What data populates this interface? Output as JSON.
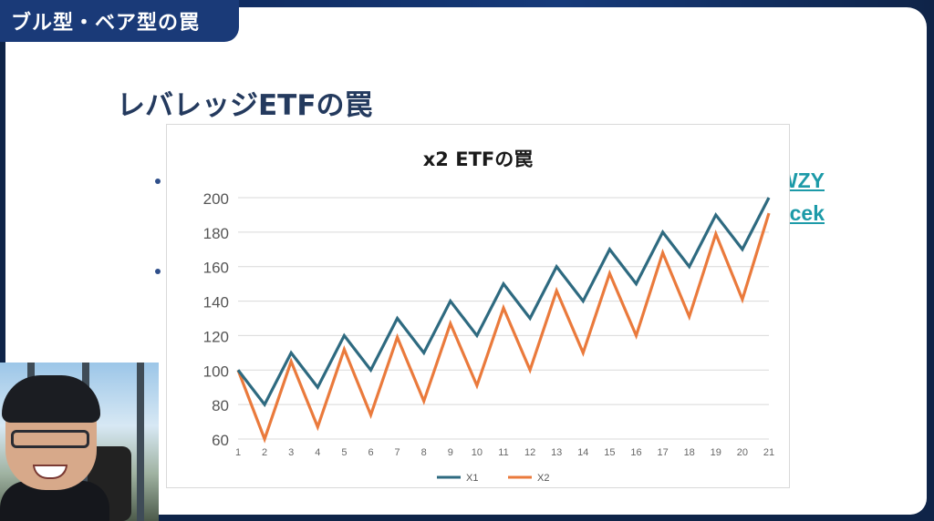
{
  "header": {
    "tag": "ブル型・ベア型の罠"
  },
  "slide": {
    "heading": "レバレッジETFの罠",
    "links": [
      "WZY",
      "rcek"
    ]
  },
  "colors": {
    "tag_bg": "#1a3a78",
    "heading": "#243a5e",
    "x1": "#2e6a80",
    "x2": "#ea7a3c",
    "link": "#1c9aa8"
  },
  "chart_data": {
    "type": "line",
    "title": "x2 ETFの罠",
    "x": [
      1,
      2,
      3,
      4,
      5,
      6,
      7,
      8,
      9,
      10,
      11,
      12,
      13,
      14,
      15,
      16,
      17,
      18,
      19,
      20,
      21
    ],
    "series": [
      {
        "name": "X1",
        "values": [
          100,
          80,
          110,
          90,
          120,
          100,
          130,
          110,
          140,
          120,
          150,
          130,
          160,
          140,
          170,
          150,
          180,
          160,
          190,
          170,
          200
        ]
      },
      {
        "name": "X2",
        "values": [
          100,
          60,
          105,
          67,
          112,
          74,
          119,
          82,
          127,
          91,
          136,
          100,
          146,
          110,
          156,
          120,
          168,
          131,
          179,
          141,
          191
        ]
      }
    ],
    "ylim": [
      60,
      200
    ],
    "yticks": [
      60,
      80,
      100,
      120,
      140,
      160,
      180,
      200
    ],
    "xlabel": "",
    "ylabel": "",
    "grid": true,
    "legend": "bottom"
  }
}
